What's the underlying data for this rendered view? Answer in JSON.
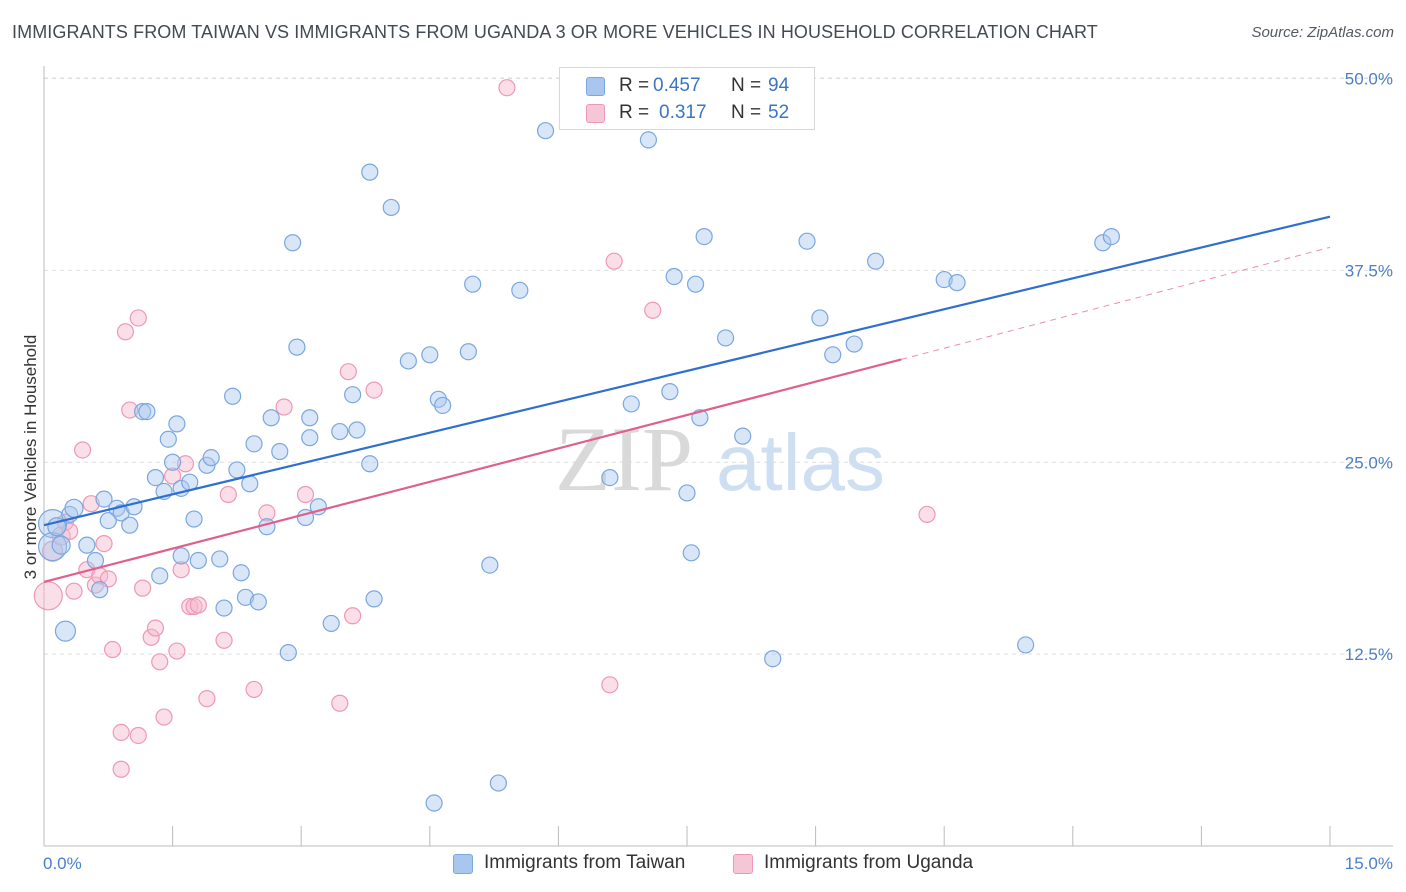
{
  "header": {
    "title": "IMMIGRANTS FROM TAIWAN VS IMMIGRANTS FROM UGANDA 3 OR MORE VEHICLES IN HOUSEHOLD CORRELATION CHART",
    "source": "Source: ZipAtlas.com"
  },
  "watermark": {
    "zip": "ZIP",
    "atlas": "atlas"
  },
  "colors": {
    "taiwan_fill": "#a9c7ee",
    "taiwan_stroke": "#7aa7e0",
    "taiwan_line": "#2f6fd0",
    "uganda_fill": "#f5b8cb",
    "uganda_stroke": "#ee98b4",
    "uganda_line": "#e0608c",
    "tick_label": "#4a7fc9",
    "grid": "#dddddd"
  },
  "legend_top": {
    "rows": [
      {
        "r_label": "R =",
        "r_value": "0.457",
        "n_label": "N =",
        "n_value": "94"
      },
      {
        "r_label": "R =",
        "r_value": "0.317",
        "n_label": "N =",
        "n_value": "52"
      }
    ]
  },
  "legend_bottom": {
    "taiwan": "Immigrants from Taiwan",
    "uganda": "Immigrants from Uganda"
  },
  "chart_data": {
    "type": "scatter",
    "title": "IMMIGRANTS FROM TAIWAN VS IMMIGRANTS FROM UGANDA 3 OR MORE VEHICLES IN HOUSEHOLD CORRELATION CHART",
    "xlabel": "",
    "ylabel": "3 or more Vehicles in Household",
    "xlim": [
      0,
      15
    ],
    "ylim": [
      0,
      50.5
    ],
    "x_tick_labels": [
      "0.0%",
      "15.0%"
    ],
    "y_ticks": [
      12.5,
      25.0,
      37.5,
      50.0
    ],
    "y_tick_labels": [
      "12.5%",
      "25.0%",
      "37.5%",
      "50.0%"
    ],
    "grid": true,
    "series": [
      {
        "name": "Immigrants from Taiwan",
        "r": 0.457,
        "n": 94,
        "trend": {
          "x": [
            0.0,
            15.0
          ],
          "y": [
            20.9,
            41.0
          ]
        },
        "points": [
          [
            0.1,
            21.0,
            14
          ],
          [
            0.1,
            19.5,
            14
          ],
          [
            0.15,
            20.8,
            9
          ],
          [
            0.2,
            19.6,
            9
          ],
          [
            0.25,
            14.0,
            10
          ],
          [
            0.3,
            21.6,
            8
          ],
          [
            0.35,
            22.0,
            9
          ],
          [
            0.5,
            19.6,
            8
          ],
          [
            0.6,
            18.6,
            8
          ],
          [
            0.65,
            16.7,
            8
          ],
          [
            0.7,
            22.6,
            8
          ],
          [
            0.75,
            21.2,
            8
          ],
          [
            0.85,
            22.0,
            8
          ],
          [
            0.9,
            21.7,
            8
          ],
          [
            1.0,
            20.9,
            8
          ],
          [
            1.05,
            22.1,
            8
          ],
          [
            1.15,
            28.3,
            8
          ],
          [
            1.2,
            28.3,
            8
          ],
          [
            1.3,
            24.0,
            8
          ],
          [
            1.35,
            17.6,
            8
          ],
          [
            1.4,
            23.1,
            8
          ],
          [
            1.45,
            26.5,
            8
          ],
          [
            1.5,
            25.0,
            8
          ],
          [
            1.55,
            27.5,
            8
          ],
          [
            1.6,
            23.3,
            8
          ],
          [
            1.6,
            18.9,
            8
          ],
          [
            1.7,
            23.7,
            8
          ],
          [
            1.75,
            21.3,
            8
          ],
          [
            1.8,
            18.6,
            8
          ],
          [
            1.9,
            24.8,
            8
          ],
          [
            1.95,
            25.3,
            8
          ],
          [
            2.05,
            18.7,
            8
          ],
          [
            2.1,
            15.5,
            8
          ],
          [
            2.2,
            29.3,
            8
          ],
          [
            2.25,
            24.5,
            8
          ],
          [
            2.3,
            17.8,
            8
          ],
          [
            2.35,
            16.2,
            8
          ],
          [
            2.4,
            23.6,
            8
          ],
          [
            2.45,
            26.2,
            8
          ],
          [
            2.5,
            15.9,
            8
          ],
          [
            2.6,
            20.8,
            8
          ],
          [
            2.65,
            27.9,
            8
          ],
          [
            2.75,
            25.7,
            8
          ],
          [
            2.85,
            12.6,
            8
          ],
          [
            2.9,
            39.3,
            8
          ],
          [
            2.95,
            32.5,
            8
          ],
          [
            3.05,
            21.4,
            8
          ],
          [
            3.1,
            26.6,
            8
          ],
          [
            3.1,
            27.9,
            8
          ],
          [
            3.2,
            22.1,
            8
          ],
          [
            3.35,
            14.5,
            8
          ],
          [
            3.45,
            27.0,
            8
          ],
          [
            3.6,
            29.4,
            8
          ],
          [
            3.65,
            27.1,
            8
          ],
          [
            3.8,
            43.9,
            8
          ],
          [
            3.8,
            24.9,
            8
          ],
          [
            3.85,
            16.1,
            8
          ],
          [
            4.05,
            41.6,
            8
          ],
          [
            4.25,
            31.6,
            8
          ],
          [
            4.5,
            32.0,
            8
          ],
          [
            4.55,
            2.8,
            8
          ],
          [
            4.6,
            29.1,
            8
          ],
          [
            4.65,
            28.7,
            8
          ],
          [
            4.95,
            32.2,
            8
          ],
          [
            5.0,
            36.6,
            8
          ],
          [
            5.2,
            18.3,
            8
          ],
          [
            5.3,
            4.1,
            8
          ],
          [
            5.55,
            36.2,
            8
          ],
          [
            5.85,
            46.6,
            8
          ],
          [
            6.6,
            24.0,
            8
          ],
          [
            6.85,
            28.8,
            8
          ],
          [
            7.05,
            46.0,
            8
          ],
          [
            7.3,
            29.6,
            8
          ],
          [
            7.35,
            37.1,
            8
          ],
          [
            7.5,
            23.0,
            8
          ],
          [
            7.55,
            19.1,
            8
          ],
          [
            7.6,
            36.6,
            8
          ],
          [
            7.65,
            27.9,
            8
          ],
          [
            7.7,
            39.7,
            8
          ],
          [
            7.95,
            33.1,
            8
          ],
          [
            8.15,
            26.7,
            8
          ],
          [
            8.5,
            12.2,
            8
          ],
          [
            8.9,
            39.4,
            8
          ],
          [
            9.05,
            34.4,
            8
          ],
          [
            9.2,
            32.0,
            8
          ],
          [
            9.45,
            32.7,
            8
          ],
          [
            9.7,
            38.1,
            8
          ],
          [
            10.5,
            36.9,
            8
          ],
          [
            10.65,
            36.7,
            8
          ],
          [
            11.45,
            13.1,
            8
          ],
          [
            12.35,
            39.3,
            8
          ],
          [
            12.45,
            39.7,
            8
          ]
        ]
      },
      {
        "name": "Immigrants from Uganda",
        "r": 0.317,
        "n": 52,
        "trend": {
          "x": [
            0.0,
            10.0
          ],
          "y": [
            17.2,
            31.7
          ]
        },
        "trend_dashed_extension": {
          "x": [
            10.0,
            15.0
          ],
          "y": [
            31.7,
            39.0
          ]
        },
        "points": [
          [
            0.05,
            16.3,
            14
          ],
          [
            0.1,
            19.2,
            10
          ],
          [
            0.2,
            20.2,
            9
          ],
          [
            0.25,
            21.1,
            8
          ],
          [
            0.3,
            20.5,
            8
          ],
          [
            0.35,
            16.6,
            8
          ],
          [
            0.45,
            25.8,
            8
          ],
          [
            0.5,
            18.0,
            8
          ],
          [
            0.55,
            22.3,
            8
          ],
          [
            0.6,
            17.0,
            8
          ],
          [
            0.65,
            17.6,
            8
          ],
          [
            0.7,
            19.7,
            8
          ],
          [
            0.75,
            17.4,
            8
          ],
          [
            0.8,
            12.8,
            8
          ],
          [
            0.9,
            7.4,
            8
          ],
          [
            0.9,
            5.0,
            8
          ],
          [
            0.95,
            33.5,
            8
          ],
          [
            1.0,
            28.4,
            8
          ],
          [
            1.1,
            34.4,
            8
          ],
          [
            1.1,
            7.2,
            8
          ],
          [
            1.15,
            16.8,
            8
          ],
          [
            1.25,
            13.6,
            8
          ],
          [
            1.3,
            14.2,
            8
          ],
          [
            1.35,
            12.0,
            8
          ],
          [
            1.4,
            8.4,
            8
          ],
          [
            1.5,
            24.1,
            8
          ],
          [
            1.55,
            12.7,
            8
          ],
          [
            1.6,
            18.0,
            8
          ],
          [
            1.65,
            24.9,
            8
          ],
          [
            1.7,
            15.6,
            8
          ],
          [
            1.75,
            15.6,
            8
          ],
          [
            1.8,
            15.7,
            8
          ],
          [
            1.9,
            9.6,
            8
          ],
          [
            2.1,
            13.4,
            8
          ],
          [
            2.15,
            22.9,
            8
          ],
          [
            2.45,
            10.2,
            8
          ],
          [
            2.6,
            21.7,
            8
          ],
          [
            2.8,
            28.6,
            8
          ],
          [
            3.05,
            22.9,
            8
          ],
          [
            3.45,
            9.3,
            8
          ],
          [
            3.55,
            30.9,
            8
          ],
          [
            3.6,
            15.0,
            8
          ],
          [
            3.85,
            29.7,
            8
          ],
          [
            5.4,
            49.4,
            8
          ],
          [
            6.6,
            10.5,
            8
          ],
          [
            6.65,
            38.1,
            8
          ],
          [
            7.1,
            34.9,
            8
          ],
          [
            10.3,
            21.6,
            8
          ]
        ]
      }
    ]
  }
}
